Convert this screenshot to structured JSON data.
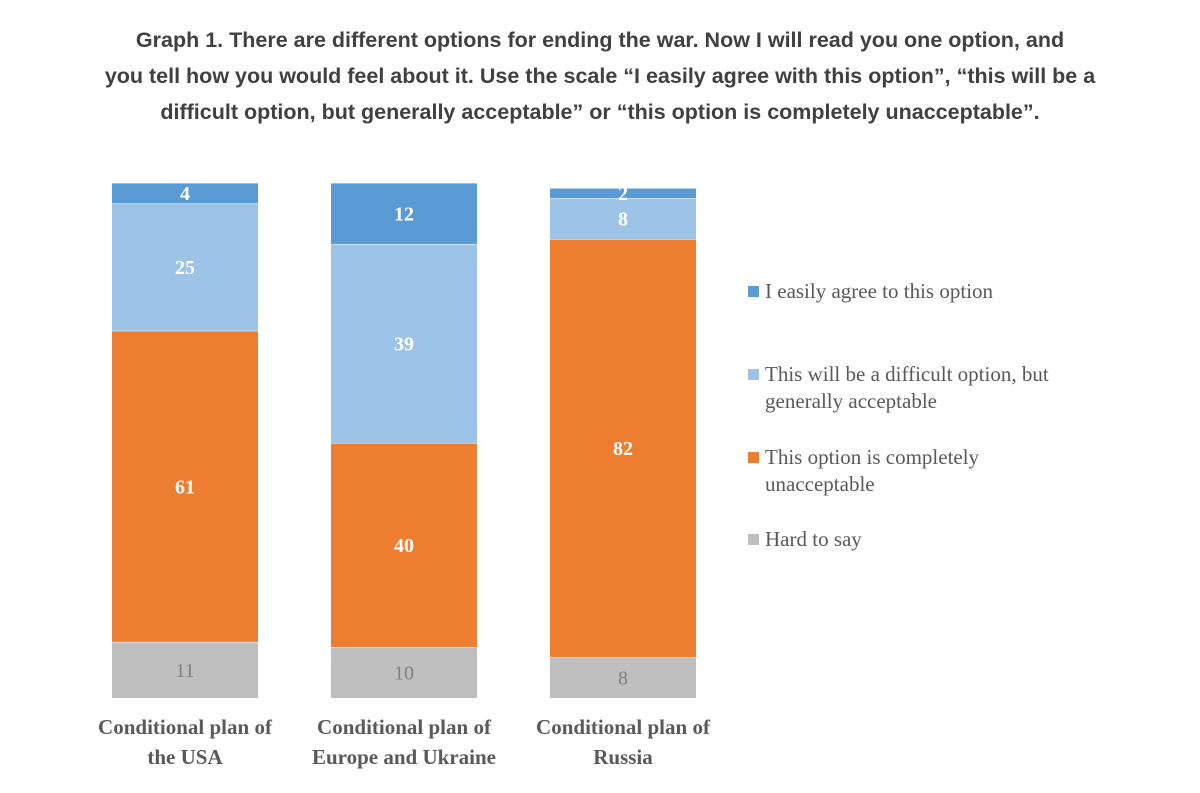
{
  "title_lines": [
    "Graph 1. There are different options for ending the war. Now I will read you one option, and",
    "you tell how you would feel about it. Use the scale “I easily agree with this option”, “this will be a",
    "difficult option, but generally acceptable” or “this option is completely unacceptable”."
  ],
  "chart_data": {
    "type": "bar",
    "stacked": true,
    "categories": [
      "Conditional plan of the USA",
      "Conditional plan of Europe and Ukraine",
      "Conditional plan of Russia"
    ],
    "category_label_lines": [
      [
        "Conditional plan of",
        "the USA"
      ],
      [
        "Conditional plan of",
        "Europe and Ukraine"
      ],
      [
        "Conditional plan of",
        "Russia"
      ]
    ],
    "series": [
      {
        "name": "Hard to say",
        "values": [
          11,
          10,
          8
        ],
        "color": "#bfbfbf",
        "label_color": "#7f7f7f"
      },
      {
        "name": "This option is completely unacceptable",
        "values": [
          61,
          40,
          82
        ],
        "color": "#ed7d31",
        "label_color": "#ffffff"
      },
      {
        "name": "This will be a difficult option, but generally acceptable",
        "values": [
          25,
          39,
          8
        ],
        "color": "#9dc3e6",
        "label_color": "#ffffff"
      },
      {
        "name": "I easily agree to this option",
        "values": [
          4,
          12,
          2
        ],
        "color": "#5b9bd5",
        "label_color": "#ffffff"
      }
    ],
    "legend": [
      {
        "lines": [
          "I easily agree to this option"
        ],
        "color": "#5b9bd5"
      },
      {
        "lines": [
          "This will be a difficult option, but",
          "generally acceptable"
        ],
        "color": "#9dc3e6"
      },
      {
        "lines": [
          "This option is completely",
          "unacceptable"
        ],
        "color": "#ed7d31"
      },
      {
        "lines": [
          "Hard to say"
        ],
        "color": "#bfbfbf"
      }
    ],
    "legend_position": "right",
    "ylim": [
      0,
      100
    ],
    "grid": false
  }
}
